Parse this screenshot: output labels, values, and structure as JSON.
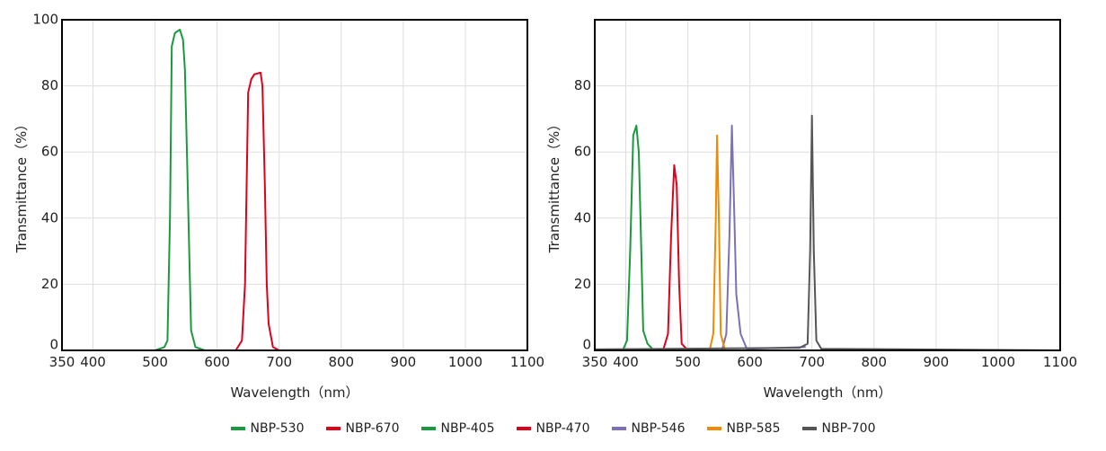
{
  "chart_data": [
    {
      "type": "line",
      "xlabel": "Wavelength（nm）",
      "ylabel": "Transmittance（%）",
      "xlim": [
        350,
        1100
      ],
      "xticks": [
        350,
        400,
        500,
        600,
        700,
        800,
        900,
        1000,
        1100
      ],
      "ylim": [
        0,
        100
      ],
      "yticks": [
        0,
        20,
        40,
        60,
        80,
        100
      ],
      "grid": true,
      "series": [
        {
          "name": "NBP-530",
          "color": "#1a9a3e",
          "x": [
            350,
            500,
            515,
            520,
            524,
            527,
            532,
            540,
            545,
            548,
            552,
            555,
            558,
            565,
            580,
            1100
          ],
          "values": [
            0,
            0,
            1,
            3,
            40,
            92,
            96,
            97,
            94,
            85,
            55,
            30,
            6,
            1,
            0,
            0
          ]
        },
        {
          "name": "NBP-670",
          "color": "#e0001b",
          "x": [
            350,
            630,
            640,
            645,
            650,
            655,
            660,
            670,
            673,
            677,
            680,
            683,
            690,
            700,
            1100
          ],
          "values": [
            0,
            0,
            3,
            20,
            78,
            82,
            83.5,
            84,
            80,
            50,
            20,
            8,
            1,
            0,
            0
          ]
        }
      ]
    },
    {
      "type": "line",
      "xlabel": "Wavelength（nm）",
      "ylabel": "Transmittance（%）",
      "xlim": [
        350,
        1100
      ],
      "xticks": [
        350,
        400,
        500,
        600,
        700,
        800,
        900,
        1000,
        1100
      ],
      "ylim": [
        0,
        100
      ],
      "yticks": [
        0,
        20,
        40,
        60,
        80
      ],
      "grid": true,
      "series": [
        {
          "name": "NBP-405",
          "color": "#1a9a3e",
          "x": [
            350,
            395,
            402,
            407,
            412,
            417,
            421,
            425,
            428,
            435,
            445,
            1100
          ],
          "values": [
            0,
            0,
            3,
            30,
            65,
            68,
            60,
            30,
            6,
            2,
            0,
            0
          ]
        },
        {
          "name": "NBP-470",
          "color": "#e0001b",
          "x": [
            350,
            460,
            468,
            473,
            478,
            482,
            486,
            490,
            500,
            1100
          ],
          "values": [
            0,
            0,
            5,
            35,
            56,
            50,
            20,
            2,
            0,
            0
          ]
        },
        {
          "name": "NBP-546",
          "color": "#7b72b5",
          "x": [
            350,
            555,
            562,
            567,
            571,
            575,
            578,
            585,
            595,
            690
          ],
          "values": [
            0,
            0,
            5,
            35,
            68,
            40,
            17,
            5,
            0.5,
            1
          ]
        },
        {
          "name": "NBP-585",
          "color": "#f08a00",
          "x": [
            350,
            535,
            541,
            545,
            547,
            550,
            553,
            560,
            1100
          ],
          "values": [
            0,
            0,
            5,
            40,
            65,
            40,
            5,
            0,
            0
          ]
        },
        {
          "name": "NBP-700",
          "color": "#555555",
          "x": [
            350,
            680,
            693,
            697,
            700,
            703,
            707,
            715,
            1100
          ],
          "values": [
            0.3,
            0.8,
            2,
            30,
            71,
            30,
            3,
            0.5,
            0
          ]
        }
      ]
    }
  ]
}
